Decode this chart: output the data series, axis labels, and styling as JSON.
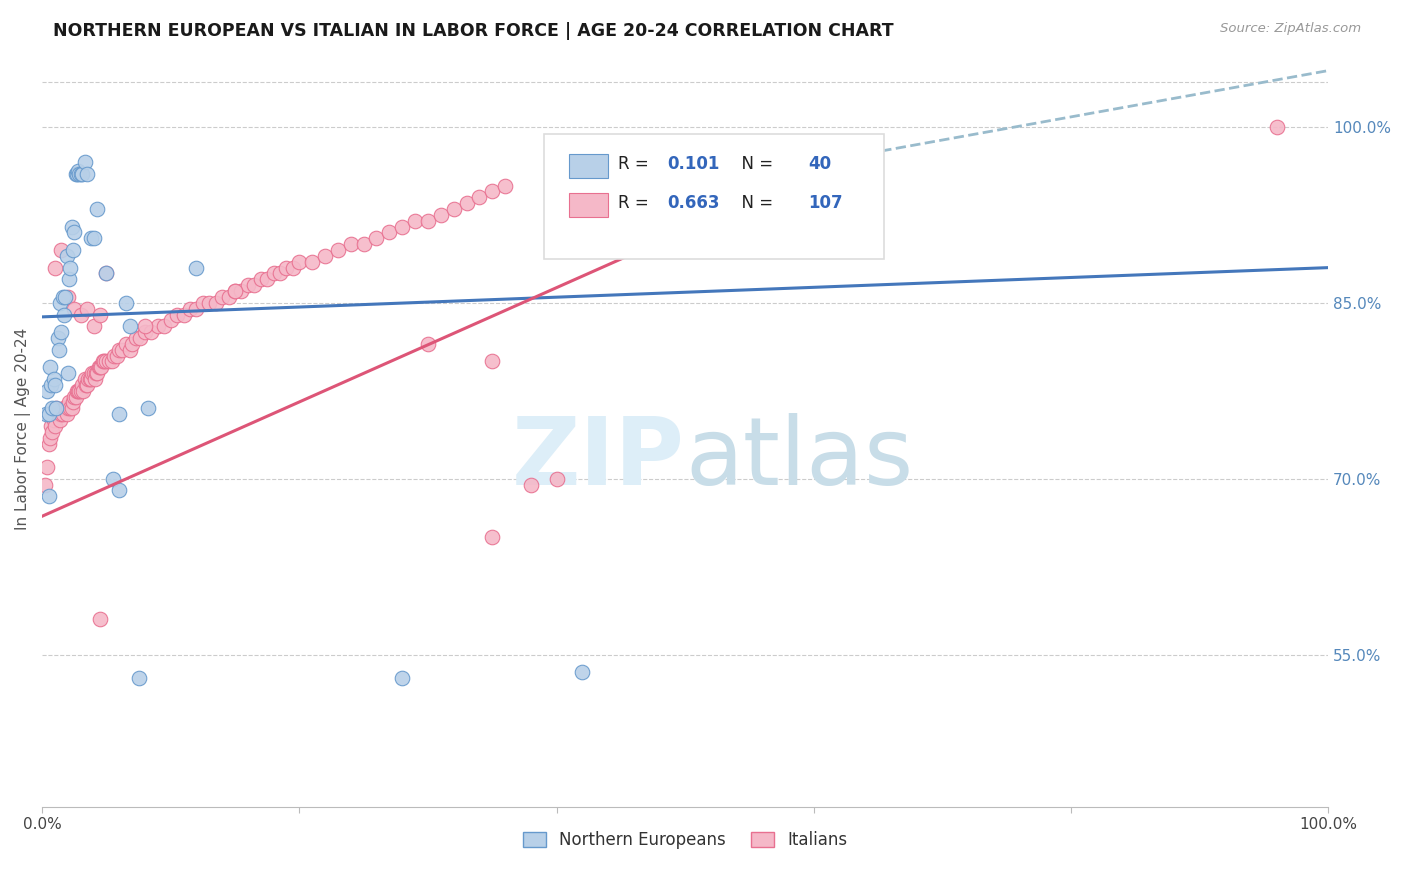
{
  "title": "NORTHERN EUROPEAN VS ITALIAN IN LABOR FORCE | AGE 20-24 CORRELATION CHART",
  "source_text": "Source: ZipAtlas.com",
  "ylabel": "In Labor Force | Age 20-24",
  "x_tick_labels": [
    "0.0%",
    "",
    "",
    "",
    "",
    "100.0%"
  ],
  "y_ticks": [
    0.55,
    0.7,
    0.85,
    1.0
  ],
  "y_tick_labels": [
    "55.0%",
    "70.0%",
    "85.0%",
    "100.0%"
  ],
  "xlim": [
    0.0,
    1.0
  ],
  "ylim": [
    0.42,
    1.065
  ],
  "blue_R": "0.101",
  "blue_N": "40",
  "pink_R": "0.663",
  "pink_N": "107",
  "blue_color": "#b8d0e8",
  "blue_edge_color": "#6699cc",
  "pink_color": "#f5b8c8",
  "pink_edge_color": "#e87090",
  "blue_line_color": "#4477bb",
  "pink_line_color": "#dd5577",
  "dashed_color": "#99bbcc",
  "watermark_color": "#ddeef8",
  "legend_label_blue": "Northern Europeans",
  "legend_label_pink": "Italians",
  "blue_regression": [
    0.0,
    0.838,
    1.0,
    0.88
  ],
  "pink_regression_solid": [
    0.0,
    0.668,
    0.63,
    0.975
  ],
  "pink_regression_dashed": [
    0.63,
    0.975,
    1.0,
    1.048
  ],
  "blue_scatter": [
    [
      0.003,
      0.755
    ],
    [
      0.004,
      0.775
    ],
    [
      0.005,
      0.755
    ],
    [
      0.006,
      0.795
    ],
    [
      0.007,
      0.78
    ],
    [
      0.008,
      0.76
    ],
    [
      0.009,
      0.785
    ],
    [
      0.01,
      0.78
    ],
    [
      0.011,
      0.76
    ],
    [
      0.012,
      0.82
    ],
    [
      0.013,
      0.81
    ],
    [
      0.014,
      0.85
    ],
    [
      0.015,
      0.825
    ],
    [
      0.016,
      0.855
    ],
    [
      0.017,
      0.84
    ],
    [
      0.018,
      0.855
    ],
    [
      0.019,
      0.89
    ],
    [
      0.02,
      0.79
    ],
    [
      0.021,
      0.87
    ],
    [
      0.022,
      0.88
    ],
    [
      0.023,
      0.915
    ],
    [
      0.024,
      0.895
    ],
    [
      0.025,
      0.91
    ],
    [
      0.026,
      0.96
    ],
    [
      0.027,
      0.96
    ],
    [
      0.028,
      0.962
    ],
    [
      0.029,
      0.96
    ],
    [
      0.03,
      0.96
    ],
    [
      0.031,
      0.96
    ],
    [
      0.033,
      0.97
    ],
    [
      0.035,
      0.96
    ],
    [
      0.038,
      0.905
    ],
    [
      0.04,
      0.905
    ],
    [
      0.043,
      0.93
    ],
    [
      0.05,
      0.875
    ],
    [
      0.055,
      0.7
    ],
    [
      0.06,
      0.755
    ],
    [
      0.065,
      0.85
    ],
    [
      0.068,
      0.83
    ],
    [
      0.082,
      0.76
    ],
    [
      0.12,
      0.88
    ],
    [
      0.06,
      0.69
    ],
    [
      0.005,
      0.685
    ],
    [
      0.075,
      0.53
    ],
    [
      0.28,
      0.53
    ],
    [
      0.42,
      0.535
    ]
  ],
  "pink_scatter": [
    [
      0.002,
      0.695
    ],
    [
      0.004,
      0.71
    ],
    [
      0.005,
      0.73
    ],
    [
      0.006,
      0.735
    ],
    [
      0.007,
      0.745
    ],
    [
      0.008,
      0.74
    ],
    [
      0.009,
      0.75
    ],
    [
      0.01,
      0.745
    ],
    [
      0.011,
      0.76
    ],
    [
      0.012,
      0.755
    ],
    [
      0.013,
      0.755
    ],
    [
      0.014,
      0.75
    ],
    [
      0.015,
      0.755
    ],
    [
      0.016,
      0.755
    ],
    [
      0.017,
      0.76
    ],
    [
      0.018,
      0.76
    ],
    [
      0.019,
      0.755
    ],
    [
      0.02,
      0.76
    ],
    [
      0.021,
      0.765
    ],
    [
      0.022,
      0.76
    ],
    [
      0.023,
      0.76
    ],
    [
      0.024,
      0.765
    ],
    [
      0.025,
      0.77
    ],
    [
      0.026,
      0.77
    ],
    [
      0.027,
      0.775
    ],
    [
      0.028,
      0.775
    ],
    [
      0.029,
      0.775
    ],
    [
      0.03,
      0.775
    ],
    [
      0.031,
      0.78
    ],
    [
      0.032,
      0.775
    ],
    [
      0.033,
      0.785
    ],
    [
      0.034,
      0.78
    ],
    [
      0.035,
      0.78
    ],
    [
      0.036,
      0.785
    ],
    [
      0.037,
      0.785
    ],
    [
      0.038,
      0.785
    ],
    [
      0.039,
      0.79
    ],
    [
      0.04,
      0.79
    ],
    [
      0.041,
      0.785
    ],
    [
      0.042,
      0.79
    ],
    [
      0.043,
      0.79
    ],
    [
      0.044,
      0.795
    ],
    [
      0.045,
      0.795
    ],
    [
      0.046,
      0.795
    ],
    [
      0.047,
      0.8
    ],
    [
      0.048,
      0.8
    ],
    [
      0.05,
      0.8
    ],
    [
      0.052,
      0.8
    ],
    [
      0.054,
      0.8
    ],
    [
      0.056,
      0.805
    ],
    [
      0.058,
      0.805
    ],
    [
      0.06,
      0.81
    ],
    [
      0.062,
      0.81
    ],
    [
      0.065,
      0.815
    ],
    [
      0.068,
      0.81
    ],
    [
      0.07,
      0.815
    ],
    [
      0.073,
      0.82
    ],
    [
      0.076,
      0.82
    ],
    [
      0.08,
      0.825
    ],
    [
      0.085,
      0.825
    ],
    [
      0.09,
      0.83
    ],
    [
      0.095,
      0.83
    ],
    [
      0.1,
      0.835
    ],
    [
      0.105,
      0.84
    ],
    [
      0.11,
      0.84
    ],
    [
      0.115,
      0.845
    ],
    [
      0.12,
      0.845
    ],
    [
      0.125,
      0.85
    ],
    [
      0.13,
      0.85
    ],
    [
      0.135,
      0.85
    ],
    [
      0.14,
      0.855
    ],
    [
      0.145,
      0.855
    ],
    [
      0.15,
      0.86
    ],
    [
      0.155,
      0.86
    ],
    [
      0.16,
      0.865
    ],
    [
      0.165,
      0.865
    ],
    [
      0.17,
      0.87
    ],
    [
      0.175,
      0.87
    ],
    [
      0.18,
      0.875
    ],
    [
      0.185,
      0.875
    ],
    [
      0.19,
      0.88
    ],
    [
      0.195,
      0.88
    ],
    [
      0.2,
      0.885
    ],
    [
      0.21,
      0.885
    ],
    [
      0.22,
      0.89
    ],
    [
      0.23,
      0.895
    ],
    [
      0.24,
      0.9
    ],
    [
      0.25,
      0.9
    ],
    [
      0.26,
      0.905
    ],
    [
      0.27,
      0.91
    ],
    [
      0.28,
      0.915
    ],
    [
      0.29,
      0.92
    ],
    [
      0.3,
      0.92
    ],
    [
      0.31,
      0.925
    ],
    [
      0.32,
      0.93
    ],
    [
      0.33,
      0.935
    ],
    [
      0.34,
      0.94
    ],
    [
      0.35,
      0.945
    ],
    [
      0.36,
      0.95
    ],
    [
      0.01,
      0.88
    ],
    [
      0.015,
      0.895
    ],
    [
      0.02,
      0.855
    ],
    [
      0.025,
      0.845
    ],
    [
      0.03,
      0.84
    ],
    [
      0.035,
      0.845
    ],
    [
      0.04,
      0.83
    ],
    [
      0.045,
      0.84
    ],
    [
      0.05,
      0.875
    ],
    [
      0.08,
      0.83
    ],
    [
      0.15,
      0.86
    ],
    [
      0.3,
      0.815
    ],
    [
      0.35,
      0.8
    ],
    [
      0.38,
      0.695
    ],
    [
      0.4,
      0.7
    ],
    [
      0.045,
      0.58
    ],
    [
      0.35,
      0.65
    ],
    [
      0.96,
      1.0
    ]
  ]
}
